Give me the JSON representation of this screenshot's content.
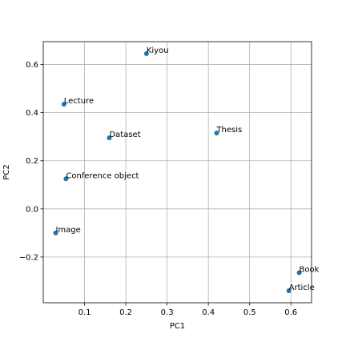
{
  "chart_data": {
    "type": "scatter",
    "title": "",
    "xlabel": "PC1",
    "ylabel": "PC2",
    "xlim": [
      0.0,
      0.65
    ],
    "ylim": [
      -0.39,
      0.695
    ],
    "grid": true,
    "x_ticks": [
      0.1,
      0.2,
      0.3,
      0.4,
      0.5,
      0.6
    ],
    "x_tick_labels": [
      "0.1",
      "0.2",
      "0.3",
      "0.4",
      "0.5",
      "0.6"
    ],
    "y_ticks": [
      -0.2,
      0.0,
      0.2,
      0.4,
      0.6
    ],
    "y_tick_labels": [
      "−0.2",
      "0.0",
      "0.2",
      "0.4",
      "0.6"
    ],
    "point_color": "#1f77b4",
    "points": [
      {
        "label": "Kiyou",
        "x": 0.25,
        "y": 0.645
      },
      {
        "label": "Lecture",
        "x": 0.05,
        "y": 0.435
      },
      {
        "label": "Dataset",
        "x": 0.16,
        "y": 0.295
      },
      {
        "label": "Thesis",
        "x": 0.42,
        "y": 0.315
      },
      {
        "label": "Conference object",
        "x": 0.055,
        "y": 0.125
      },
      {
        "label": "Image",
        "x": 0.03,
        "y": -0.1
      },
      {
        "label": "Book",
        "x": 0.62,
        "y": -0.265
      },
      {
        "label": "Article",
        "x": 0.595,
        "y": -0.34
      }
    ]
  }
}
